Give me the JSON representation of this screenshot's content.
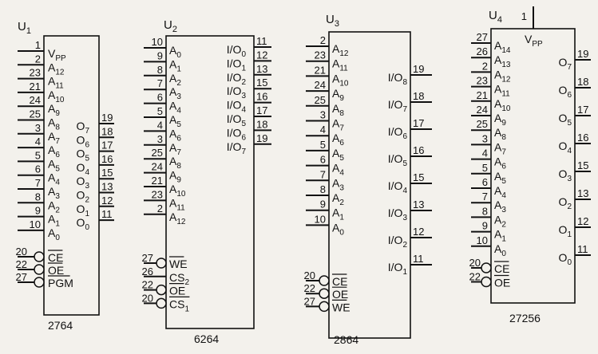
{
  "chips": [
    {
      "ref": "U",
      "ref_sub": "1",
      "part": "2764",
      "left_pins": [
        {
          "num": "1",
          "name": "V",
          "sub": "PP"
        },
        {
          "num": "2",
          "name": "A",
          "sub": "12"
        },
        {
          "num": "23",
          "name": "A",
          "sub": "11"
        },
        {
          "num": "21",
          "name": "A",
          "sub": "10"
        },
        {
          "num": "24",
          "name": "A",
          "sub": "9"
        },
        {
          "num": "25",
          "name": "A",
          "sub": "8"
        },
        {
          "num": "3",
          "name": "A",
          "sub": "7"
        },
        {
          "num": "4",
          "name": "A",
          "sub": "6"
        },
        {
          "num": "5",
          "name": "A",
          "sub": "5"
        },
        {
          "num": "6",
          "name": "A",
          "sub": "4"
        },
        {
          "num": "7",
          "name": "A",
          "sub": "3"
        },
        {
          "num": "8",
          "name": "A",
          "sub": "2"
        },
        {
          "num": "9",
          "name": "A",
          "sub": "1"
        },
        {
          "num": "10",
          "name": "A",
          "sub": "0"
        }
      ],
      "ctrl_pins": [
        {
          "num": "20",
          "name": "CE",
          "sub": "",
          "bar": true
        },
        {
          "num": "22",
          "name": "OE",
          "sub": "",
          "bar": true
        },
        {
          "num": "27",
          "name": "PGM",
          "sub": "",
          "bar": true
        }
      ],
      "right_pins": [
        {
          "num": "19",
          "name": "O",
          "sub": "7"
        },
        {
          "num": "18",
          "name": "O",
          "sub": "6"
        },
        {
          "num": "17",
          "name": "O",
          "sub": "5"
        },
        {
          "num": "16",
          "name": "O",
          "sub": "4"
        },
        {
          "num": "15",
          "name": "O",
          "sub": "3"
        },
        {
          "num": "13",
          "name": "O",
          "sub": "2"
        },
        {
          "num": "12",
          "name": "O",
          "sub": "1"
        },
        {
          "num": "11",
          "name": "O",
          "sub": "0"
        }
      ]
    },
    {
      "ref": "U",
      "ref_sub": "2",
      "part": "6264",
      "left_pins": [
        {
          "num": "10",
          "name": "A",
          "sub": "0"
        },
        {
          "num": "9",
          "name": "A",
          "sub": "1"
        },
        {
          "num": "8",
          "name": "A",
          "sub": "2"
        },
        {
          "num": "7",
          "name": "A",
          "sub": "3"
        },
        {
          "num": "6",
          "name": "A",
          "sub": "4"
        },
        {
          "num": "5",
          "name": "A",
          "sub": "5"
        },
        {
          "num": "4",
          "name": "A",
          "sub": "6"
        },
        {
          "num": "3",
          "name": "A",
          "sub": "7"
        },
        {
          "num": "25",
          "name": "A",
          "sub": "8"
        },
        {
          "num": "24",
          "name": "A",
          "sub": "9"
        },
        {
          "num": "21",
          "name": "A",
          "sub": "10"
        },
        {
          "num": "23",
          "name": "A",
          "sub": "11"
        },
        {
          "num": "2",
          "name": "A",
          "sub": "12"
        }
      ],
      "ctrl_pins": [
        {
          "num": "27",
          "name": "WE",
          "sub": "",
          "bar": true,
          "bubble": true
        },
        {
          "num": "26",
          "name": "CS",
          "sub": "2",
          "bar": false,
          "bubble": false
        },
        {
          "num": "22",
          "name": "OE",
          "sub": "",
          "bar": true,
          "bubble": true
        },
        {
          "num": "20",
          "name": "CS",
          "sub": "1",
          "bar": true,
          "bubble": true
        }
      ],
      "right_pins": [
        {
          "num": "11",
          "name": "I/O",
          "sub": "0"
        },
        {
          "num": "12",
          "name": "I/O",
          "sub": "1"
        },
        {
          "num": "13",
          "name": "I/O",
          "sub": "2"
        },
        {
          "num": "15",
          "name": "I/O",
          "sub": "3"
        },
        {
          "num": "16",
          "name": "I/O",
          "sub": "4"
        },
        {
          "num": "17",
          "name": "I/O",
          "sub": "5"
        },
        {
          "num": "18",
          "name": "I/O",
          "sub": "6"
        },
        {
          "num": "19",
          "name": "I/O",
          "sub": "7"
        }
      ]
    },
    {
      "ref": "U",
      "ref_sub": "3",
      "part": "2864",
      "left_pins": [
        {
          "num": "2",
          "name": "A",
          "sub": "12"
        },
        {
          "num": "23",
          "name": "A",
          "sub": "11"
        },
        {
          "num": "21",
          "name": "A",
          "sub": "10"
        },
        {
          "num": "24",
          "name": "A",
          "sub": "9"
        },
        {
          "num": "25",
          "name": "A",
          "sub": "8"
        },
        {
          "num": "3",
          "name": "A",
          "sub": "7"
        },
        {
          "num": "4",
          "name": "A",
          "sub": "6"
        },
        {
          "num": "5",
          "name": "A",
          "sub": "5"
        },
        {
          "num": "6",
          "name": "A",
          "sub": "4"
        },
        {
          "num": "7",
          "name": "A",
          "sub": "3"
        },
        {
          "num": "8",
          "name": "A",
          "sub": "2"
        },
        {
          "num": "9",
          "name": "A",
          "sub": "1"
        },
        {
          "num": "10",
          "name": "A",
          "sub": "0"
        }
      ],
      "ctrl_pins": [
        {
          "num": "20",
          "name": "CE",
          "sub": "",
          "bar": true
        },
        {
          "num": "22",
          "name": "OE",
          "sub": "",
          "bar": true
        },
        {
          "num": "27",
          "name": "WE",
          "sub": "",
          "bar": true
        }
      ],
      "right_pins": [
        {
          "num": "19",
          "name": "I/O",
          "sub": "8"
        },
        {
          "num": "18",
          "name": "I/O",
          "sub": "7"
        },
        {
          "num": "17",
          "name": "I/O",
          "sub": "6"
        },
        {
          "num": "16",
          "name": "I/O",
          "sub": "5"
        },
        {
          "num": "15",
          "name": "I/O",
          "sub": "4"
        },
        {
          "num": "13",
          "name": "I/O",
          "sub": "3"
        },
        {
          "num": "12",
          "name": "I/O",
          "sub": "2"
        },
        {
          "num": "11",
          "name": "I/O",
          "sub": "1"
        }
      ]
    },
    {
      "ref": "U",
      "ref_sub": "4",
      "part": "27256",
      "top_pin": {
        "num": "1",
        "name": "V",
        "sub": "PP"
      },
      "left_pins": [
        {
          "num": "27",
          "name": "A",
          "sub": "14"
        },
        {
          "num": "26",
          "name": "A",
          "sub": "13"
        },
        {
          "num": "2",
          "name": "A",
          "sub": "12"
        },
        {
          "num": "23",
          "name": "A",
          "sub": "11"
        },
        {
          "num": "21",
          "name": "A",
          "sub": "10"
        },
        {
          "num": "24",
          "name": "A",
          "sub": "9"
        },
        {
          "num": "25",
          "name": "A",
          "sub": "8"
        },
        {
          "num": "3",
          "name": "A",
          "sub": "7"
        },
        {
          "num": "4",
          "name": "A",
          "sub": "6"
        },
        {
          "num": "5",
          "name": "A",
          "sub": "5"
        },
        {
          "num": "6",
          "name": "A",
          "sub": "4"
        },
        {
          "num": "7",
          "name": "A",
          "sub": "3"
        },
        {
          "num": "8",
          "name": "A",
          "sub": "2"
        },
        {
          "num": "9",
          "name": "A",
          "sub": "1"
        },
        {
          "num": "10",
          "name": "A",
          "sub": "0"
        }
      ],
      "ctrl_pins": [
        {
          "num": "20",
          "name": "CE",
          "sub": "",
          "bar": true
        },
        {
          "num": "22",
          "name": "OE",
          "sub": "",
          "bar": true
        }
      ],
      "right_pins": [
        {
          "num": "19",
          "name": "O",
          "sub": "7"
        },
        {
          "num": "18",
          "name": "O",
          "sub": "6"
        },
        {
          "num": "17",
          "name": "O",
          "sub": "5"
        },
        {
          "num": "16",
          "name": "O",
          "sub": "4"
        },
        {
          "num": "15",
          "name": "O",
          "sub": "3"
        },
        {
          "num": "13",
          "name": "O",
          "sub": "2"
        },
        {
          "num": "12",
          "name": "O",
          "sub": "1"
        },
        {
          "num": "11",
          "name": "O",
          "sub": "0"
        }
      ]
    }
  ]
}
